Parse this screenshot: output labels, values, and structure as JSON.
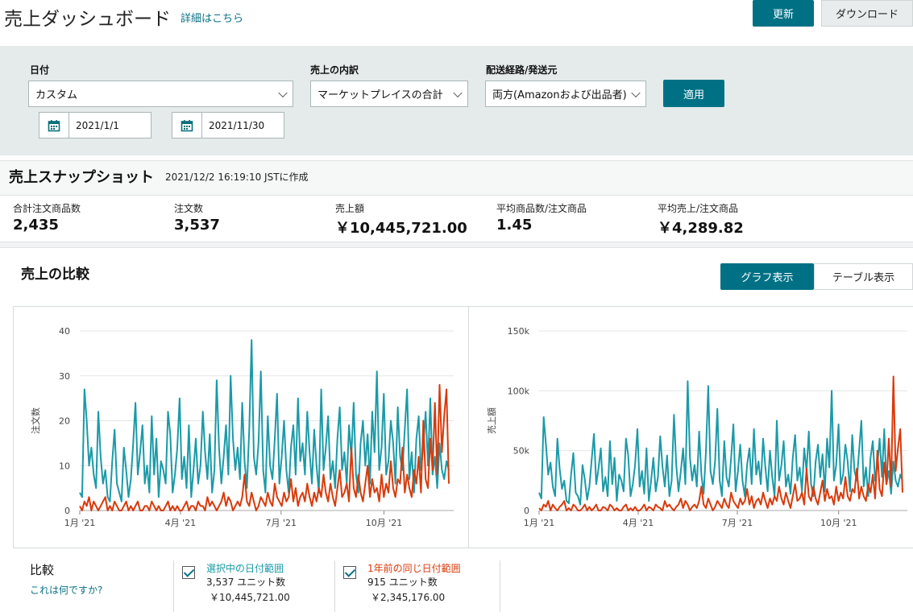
{
  "header": {
    "title": "売上ダッシュボード",
    "details_link": "詳細はこちら",
    "refresh_label": "更新",
    "download_label": "ダウンロード"
  },
  "filters": {
    "date": {
      "label": "日付",
      "value": "カスタム",
      "start": "2021/1/1",
      "end": "2021/11/30"
    },
    "breakdown": {
      "label": "売上の内訳",
      "value": "マーケットプレイスの合計"
    },
    "fulfillment": {
      "label": "配送経路/発送元",
      "value": "両方(Amazonおよび出品者)"
    },
    "apply_label": "適用"
  },
  "snapshot": {
    "title": "売上スナップショット",
    "created": "2021/12/2 16:19:10 JSTに作成",
    "metrics": [
      {
        "label": "合計注文商品数",
        "value": "2,435"
      },
      {
        "label": "注文数",
        "value": "3,537"
      },
      {
        "label": "売上額",
        "value": "￥10,445,721.00"
      },
      {
        "label": "平均商品数/注文商品",
        "value": "1.45"
      },
      {
        "label": "平均売上/注文商品",
        "value": "￥4,289.82"
      }
    ]
  },
  "comparison": {
    "title": "売上の比較",
    "graph_tab": "グラフ表示",
    "table_tab": "テーブル表示",
    "legend_label": "比較",
    "what_link": "これは何ですか?",
    "series": [
      {
        "name": "選択中の日付範囲",
        "units": "3,537 ユニット数",
        "sales": "￥10,445,721.00"
      },
      {
        "name": "1年前の同じ日付範囲",
        "units": "915 ユニット数",
        "sales": "￥2,345,176.00"
      }
    ]
  },
  "colors": {
    "accent": "#007185",
    "current": "#1a9aa8",
    "previous": "#d93a0b"
  },
  "chart_data": [
    {
      "type": "line",
      "ylabel": "注文数",
      "ylim": [
        0,
        40
      ],
      "yticks": [
        "0",
        "10",
        "20",
        "30",
        "40"
      ],
      "xticks": [
        "1月 '21",
        "4月 '21",
        "7月 '21",
        "10月 '21"
      ],
      "series": [
        {
          "name": "選択中の日付範囲",
          "values": [
            4,
            3,
            27,
            20,
            10,
            14,
            8,
            5,
            22,
            12,
            6,
            9,
            3,
            2,
            11,
            18,
            6,
            4,
            2,
            14,
            9,
            3,
            7,
            15,
            24,
            8,
            13,
            19,
            6,
            10,
            4,
            21,
            8,
            16,
            3,
            11,
            9,
            6,
            22,
            17,
            4,
            8,
            14,
            25,
            7,
            12,
            5,
            19,
            3,
            9,
            16,
            6,
            10,
            22,
            13,
            7,
            17,
            4,
            9,
            29,
            14,
            6,
            12,
            19,
            8,
            30,
            16,
            9,
            14,
            7,
            24,
            11,
            5,
            18,
            38,
            12,
            8,
            15,
            31,
            9,
            4,
            21,
            10,
            7,
            16,
            26,
            6,
            12,
            20,
            9,
            4,
            14,
            19,
            8,
            25,
            11,
            15,
            8,
            22,
            13,
            6,
            18,
            10,
            4,
            27,
            9,
            14,
            21,
            7,
            11,
            5,
            16,
            23,
            9,
            13,
            6,
            19,
            12,
            24,
            8,
            4,
            15,
            20,
            10,
            17,
            6,
            22,
            13,
            31,
            9,
            14,
            26,
            8,
            11,
            20,
            15,
            6,
            23,
            12,
            9,
            18,
            27,
            7,
            13,
            4,
            16,
            21,
            9,
            14,
            22,
            10,
            25,
            8,
            12,
            5,
            15,
            9,
            7,
            11,
            9
          ]
        },
        {
          "name": "1年前の同じ日付範囲",
          "values": [
            1,
            0,
            2,
            1,
            3,
            0,
            2,
            1,
            0,
            1,
            2,
            3,
            0,
            1,
            0,
            2,
            1,
            0,
            0,
            1,
            2,
            0,
            1,
            0,
            1,
            2,
            0,
            0,
            1,
            1,
            0,
            2,
            1,
            0,
            1,
            0,
            0,
            1,
            2,
            0,
            1,
            0,
            1,
            0,
            0,
            1,
            2,
            0,
            1,
            1,
            0,
            2,
            1,
            1,
            0,
            3,
            1,
            2,
            1,
            0,
            1,
            2,
            4,
            1,
            3,
            2,
            0,
            1,
            2,
            1,
            3,
            8,
            2,
            1,
            4,
            2,
            0,
            1,
            3,
            2,
            1,
            4,
            2,
            1,
            6,
            3,
            2,
            1,
            4,
            2,
            3,
            7,
            2,
            5,
            1,
            3,
            4,
            2,
            6,
            3,
            1,
            4,
            2,
            5,
            3,
            8,
            4,
            2,
            6,
            3,
            1,
            5,
            9,
            3,
            4,
            6,
            2,
            14,
            5,
            3,
            8,
            4,
            2,
            6,
            10,
            3,
            7,
            4,
            5,
            2,
            8,
            3,
            6,
            4,
            11,
            5,
            3,
            7,
            6,
            14,
            4,
            8,
            5,
            3,
            9,
            6,
            12,
            4,
            20,
            7,
            5,
            16,
            9,
            24,
            8,
            28,
            13,
            21,
            27,
            6
          ]
        }
      ]
    },
    {
      "type": "line",
      "ylabel": "売上額",
      "ylim": [
        0,
        150000
      ],
      "yticks": [
        "0",
        "50k",
        "100k",
        "150k"
      ],
      "xticks": [
        "1月 '21",
        "4月 '21",
        "7月 '21",
        "10月 '21"
      ],
      "series": [
        {
          "name": "選択中の日付範囲",
          "values": [
            15000,
            10000,
            78000,
            55000,
            30000,
            40000,
            20000,
            12000,
            60000,
            35000,
            18000,
            25000,
            8000,
            6000,
            30000,
            48000,
            15000,
            12000,
            5000,
            38000,
            26000,
            9000,
            20000,
            42000,
            64000,
            22000,
            35000,
            52000,
            16000,
            28000,
            12000,
            58000,
            22000,
            44000,
            8000,
            30000,
            25000,
            16000,
            60000,
            46000,
            12000,
            22000,
            38000,
            68000,
            20000,
            33000,
            14000,
            52000,
            8000,
            25000,
            44000,
            16000,
            28000,
            62000,
            36000,
            20000,
            46000,
            12000,
            25000,
            80000,
            38000,
            16000,
            33000,
            52000,
            22000,
            108000,
            44000,
            25000,
            38000,
            20000,
            66000,
            30000,
            14000,
            50000,
            104000,
            33000,
            22000,
            41000,
            85000,
            25000,
            12000,
            58000,
            28000,
            20000,
            44000,
            72000,
            16000,
            33000,
            55000,
            25000,
            12000,
            38000,
            52000,
            22000,
            68000,
            30000,
            41000,
            22000,
            60000,
            36000,
            16000,
            50000,
            28000,
            12000,
            75000,
            25000,
            38000,
            58000,
            20000,
            30000,
            14000,
            44000,
            63000,
            25000,
            36000,
            16000,
            52000,
            33000,
            66000,
            22000,
            12000,
            41000,
            55000,
            28000,
            47000,
            16000,
            60000,
            36000,
            100000,
            25000,
            38000,
            72000,
            22000,
            30000,
            55000,
            41000,
            16000,
            63000,
            33000,
            25000,
            50000,
            75000,
            20000,
            36000,
            12000,
            44000,
            58000,
            25000,
            38000,
            60000,
            28000,
            68000,
            22000,
            33000,
            14000,
            41000,
            25000,
            20000,
            30000,
            25000
          ]
        },
        {
          "name": "1年前の同じ日付範囲",
          "values": [
            2000,
            0,
            5000,
            3000,
            8000,
            0,
            5000,
            2000,
            0,
            3000,
            5000,
            8000,
            0,
            2000,
            0,
            5000,
            3000,
            0,
            0,
            2000,
            5000,
            0,
            3000,
            0,
            2000,
            5000,
            0,
            0,
            3000,
            2000,
            0,
            5000,
            3000,
            0,
            2000,
            0,
            0,
            3000,
            5000,
            0,
            2000,
            0,
            3000,
            0,
            0,
            2000,
            5000,
            0,
            3000,
            2000,
            0,
            5000,
            3000,
            2000,
            0,
            8000,
            3000,
            5000,
            2000,
            0,
            3000,
            5000,
            10000,
            2000,
            8000,
            5000,
            0,
            3000,
            5000,
            2000,
            8000,
            20000,
            5000,
            2000,
            10000,
            5000,
            0,
            3000,
            8000,
            5000,
            2000,
            10000,
            5000,
            2000,
            15000,
            8000,
            5000,
            2000,
            10000,
            5000,
            8000,
            18000,
            5000,
            12000,
            2000,
            8000,
            10000,
            5000,
            15000,
            8000,
            2000,
            10000,
            5000,
            12000,
            8000,
            20000,
            10000,
            5000,
            15000,
            8000,
            2000,
            12000,
            22000,
            8000,
            10000,
            15000,
            5000,
            35000,
            12000,
            8000,
            20000,
            10000,
            5000,
            15000,
            25000,
            8000,
            18000,
            10000,
            12000,
            5000,
            20000,
            8000,
            15000,
            10000,
            28000,
            12000,
            8000,
            18000,
            15000,
            35000,
            10000,
            20000,
            12000,
            8000,
            22000,
            15000,
            30000,
            10000,
            50000,
            18000,
            12000,
            40000,
            22000,
            60000,
            20000,
            112000,
            33000,
            52000,
            68000,
            15000
          ]
        }
      ]
    }
  ]
}
